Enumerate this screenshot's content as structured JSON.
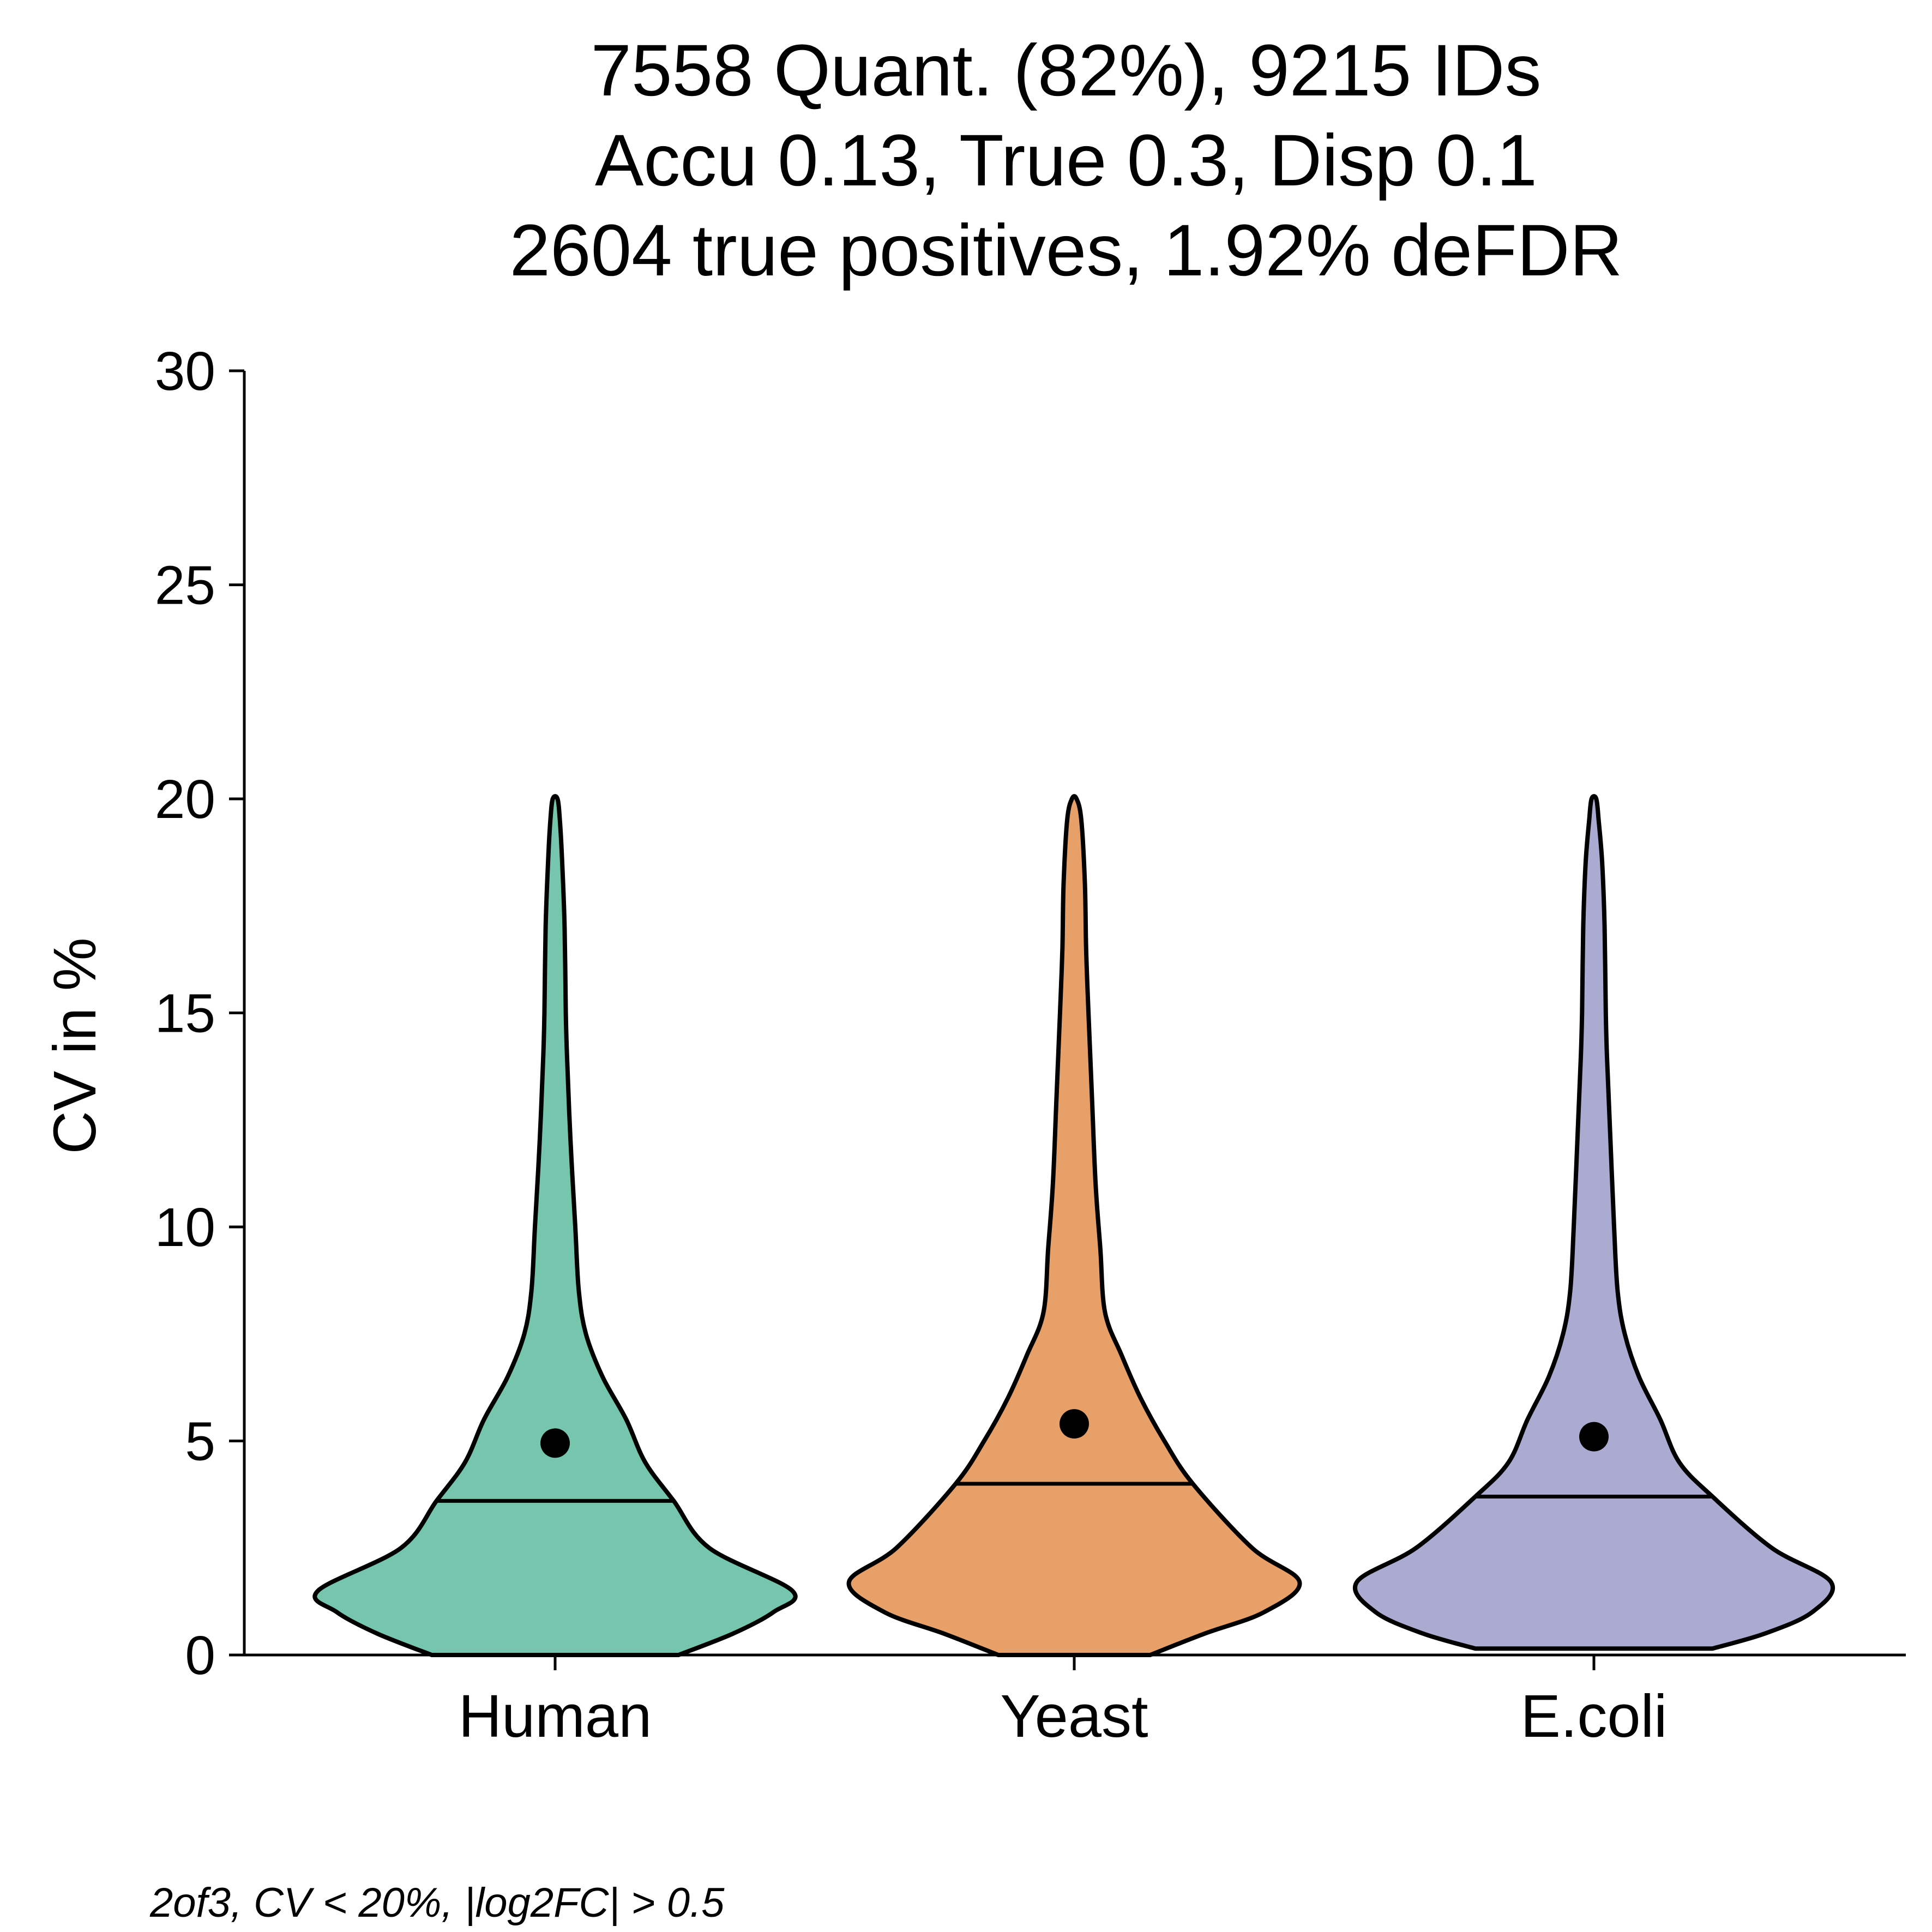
{
  "chart_data": {
    "type": "violin",
    "title_lines": [
      "7558 Quant. (82%), 9215 IDs",
      "Accu 0.13, True 0.3, Disp 0.1",
      "2604 true positives, 1.92% deFDR"
    ],
    "ylabel": "CV in %",
    "ylim": [
      0,
      30
    ],
    "yticks": [
      "0",
      "5",
      "10",
      "15",
      "20",
      "25",
      "30"
    ],
    "grid": false,
    "legend": "none",
    "caption": "2of3, CV < 20%, |log2FC| > 0.5",
    "categories": [
      "Human",
      "Yeast",
      "E.coli"
    ],
    "series": [
      {
        "category": "Human",
        "color": "#76C5AD",
        "median": 3.6,
        "mean": 4.95,
        "profile_cv": [
          0,
          0.5,
          1.0,
          1.5,
          2.5,
          3.6,
          4.5,
          5.5,
          6.5,
          7.5,
          8.5,
          10,
          12,
          14,
          15,
          17,
          18.5,
          19.5,
          20
        ],
        "profile_density": [
          0.52,
          0.75,
          0.92,
          1.0,
          0.65,
          0.5,
          0.38,
          0.3,
          0.2,
          0.13,
          0.1,
          0.085,
          0.065,
          0.05,
          0.045,
          0.04,
          0.03,
          0.02,
          0.01
        ]
      },
      {
        "category": "Yeast",
        "color": "#E8A069",
        "median": 4.0,
        "mean": 5.4,
        "profile_cv": [
          0,
          0.5,
          1.0,
          1.7,
          2.5,
          4.0,
          5.0,
          6.0,
          7.0,
          8.0,
          9.5,
          11,
          13,
          15,
          16.5,
          18,
          19.5,
          20
        ],
        "profile_density": [
          0.32,
          0.55,
          0.8,
          0.95,
          0.75,
          0.5,
          0.38,
          0.28,
          0.2,
          0.13,
          0.11,
          0.09,
          0.075,
          0.06,
          0.05,
          0.045,
          0.03,
          0.01
        ]
      },
      {
        "category": "E.coli",
        "color": "#ABABD2",
        "median": 3.7,
        "mean": 5.1,
        "profile_cv": [
          0.15,
          0.5,
          1.0,
          1.7,
          2.5,
          3.7,
          4.5,
          5.5,
          6.5,
          7.5,
          8.5,
          10,
          12,
          14,
          15,
          17,
          18.5,
          19.5,
          20
        ],
        "profile_density": [
          0.5,
          0.72,
          0.92,
          1.0,
          0.75,
          0.5,
          0.36,
          0.28,
          0.19,
          0.13,
          0.1,
          0.085,
          0.07,
          0.055,
          0.05,
          0.045,
          0.035,
          0.02,
          0.01
        ]
      }
    ]
  }
}
